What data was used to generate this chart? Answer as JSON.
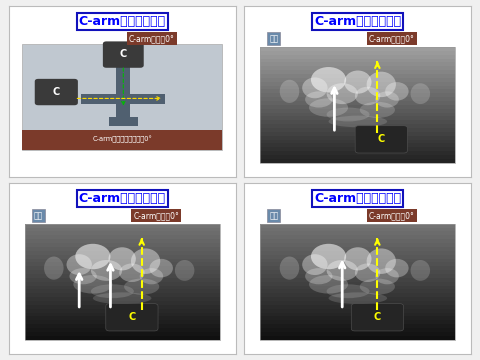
{
  "bg_color": "#f0f0f0",
  "panel_bg": "#ffffff",
  "title_color": "#0000ff",
  "title_text": "C-armの扱いが煩雑",
  "subtitle_brown_text": "C-armは常に0°",
  "subtitle_brown_bg": "#7b3a2a",
  "subtitle_brown_color": "#ffffff",
  "subtitle_blue_text": "正面",
  "subtitle_blue_bg": "#6a8aaa",
  "subtitle_blue_color": "#ffffff",
  "diagram_bg": "#c0c8d0",
  "diagram_bottom_bg": "#7b3a2a",
  "diagram_bottom_text": "C-armはベッドに対して0°",
  "diagram_bottom_color": "#ffffff",
  "arm_color": "#3a3a3a",
  "arm_body_color": "#506070",
  "panel_border": "#cccccc",
  "arrow_white": "#ffffff",
  "arrow_yellow": "#ffff00"
}
